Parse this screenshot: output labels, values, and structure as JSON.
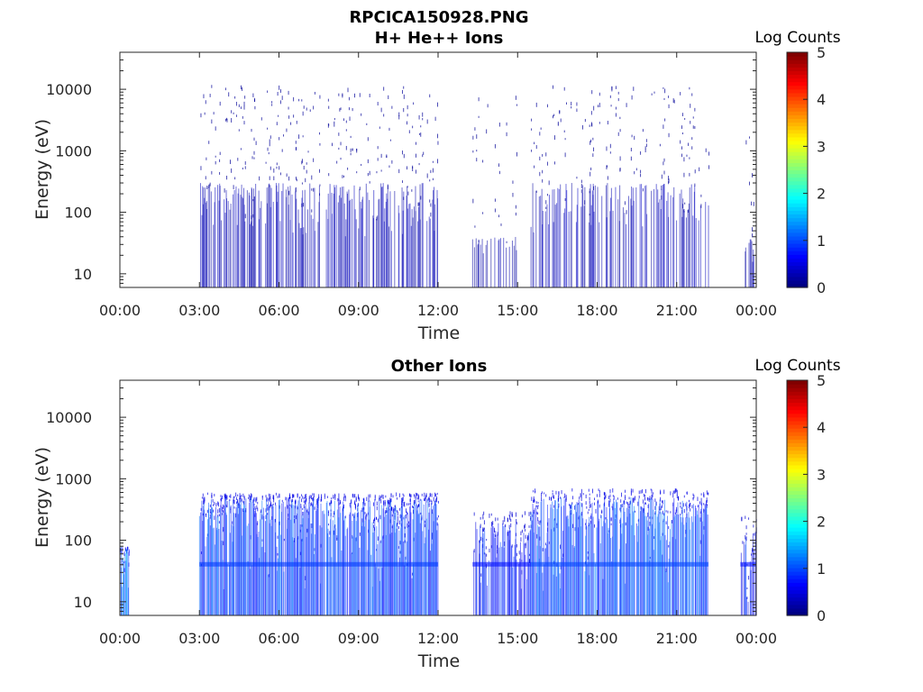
{
  "figure": {
    "title": "RPCICA150928.PNG"
  },
  "chart_data": [
    {
      "type": "heatmap",
      "title": "H+ He++ Ions",
      "xlabel": "Time",
      "ylabel": "Energy (eV)",
      "x_ticks": [
        "00:00",
        "03:00",
        "06:00",
        "09:00",
        "12:00",
        "15:00",
        "18:00",
        "21:00",
        "00:00"
      ],
      "xlim_hours": [
        0,
        24
      ],
      "y_scale": "log",
      "y_ticks": [
        10,
        100,
        1000,
        10000
      ],
      "y_tick_labels": [
        "10",
        "100",
        "1000",
        "10000"
      ],
      "ylim_ev": [
        6,
        40000
      ],
      "colorbar": {
        "label": "Log Counts",
        "ticks": [
          "0",
          "1",
          "2",
          "3",
          "4",
          "5"
        ],
        "range": [
          0,
          5
        ],
        "colormap": "jet"
      },
      "segments": [
        {
          "start_h": 3.0,
          "end_h": 12.0,
          "max_ev": 12000,
          "dense_min_ev": 40,
          "dense_max_ev": 300,
          "dense_level": 0.25,
          "sparse_level": 0.12,
          "density": 0.55
        },
        {
          "start_h": 13.3,
          "end_h": 15.0,
          "max_ev": 8000,
          "dense_min_ev": 20,
          "dense_max_ev": 40,
          "dense_level": 0.2,
          "sparse_level": 0.1,
          "density": 0.3
        },
        {
          "start_h": 15.5,
          "end_h": 22.2,
          "max_ev": 12000,
          "dense_min_ev": 40,
          "dense_max_ev": 300,
          "dense_level": 0.25,
          "sparse_level": 0.12,
          "density": 0.45
        },
        {
          "start_h": 23.4,
          "end_h": 24.0,
          "max_ev": 10000,
          "dense_min_ev": 15,
          "dense_max_ev": 40,
          "dense_level": 0.2,
          "sparse_level": 0.1,
          "density": 0.3
        }
      ]
    },
    {
      "type": "heatmap",
      "title": "Other Ions",
      "xlabel": "Time",
      "ylabel": "Energy (eV)",
      "x_ticks": [
        "00:00",
        "03:00",
        "06:00",
        "09:00",
        "12:00",
        "15:00",
        "18:00",
        "21:00",
        "00:00"
      ],
      "xlim_hours": [
        0,
        24
      ],
      "y_scale": "log",
      "y_ticks": [
        10,
        100,
        1000,
        10000
      ],
      "y_tick_labels": [
        "10",
        "100",
        "1000",
        "10000"
      ],
      "ylim_ev": [
        6,
        40000
      ],
      "colorbar": {
        "label": "Log Counts",
        "ticks": [
          "0",
          "1",
          "2",
          "3",
          "4",
          "5"
        ],
        "range": [
          0,
          5
        ],
        "colormap": "jet"
      },
      "band_ev": 40,
      "segments": [
        {
          "start_h": 0.0,
          "end_h": 0.35,
          "max_ev": 80,
          "min_ev": 6,
          "dense_min_ev": 6,
          "dense_max_ev": 80,
          "dense_level": 1.3,
          "sparse_level": 0.6,
          "density": 1.0
        },
        {
          "start_h": 3.0,
          "end_h": 12.0,
          "max_ev": 600,
          "min_ev": 6,
          "dense_min_ev": 15,
          "dense_max_ev": 500,
          "dense_level": 0.9,
          "sparse_level": 0.5,
          "density": 0.9
        },
        {
          "start_h": 13.3,
          "end_h": 15.5,
          "max_ev": 300,
          "min_ev": 6,
          "dense_min_ev": 15,
          "dense_max_ev": 200,
          "dense_level": 0.7,
          "sparse_level": 0.4,
          "density": 0.7
        },
        {
          "start_h": 15.5,
          "end_h": 22.2,
          "max_ev": 700,
          "min_ev": 6,
          "dense_min_ev": 15,
          "dense_max_ev": 500,
          "dense_level": 0.95,
          "sparse_level": 0.5,
          "density": 0.9
        },
        {
          "start_h": 23.4,
          "end_h": 24.0,
          "max_ev": 250,
          "min_ev": 6,
          "dense_min_ev": 10,
          "dense_max_ev": 150,
          "dense_level": 0.7,
          "sparse_level": 0.4,
          "density": 0.7
        }
      ]
    }
  ]
}
